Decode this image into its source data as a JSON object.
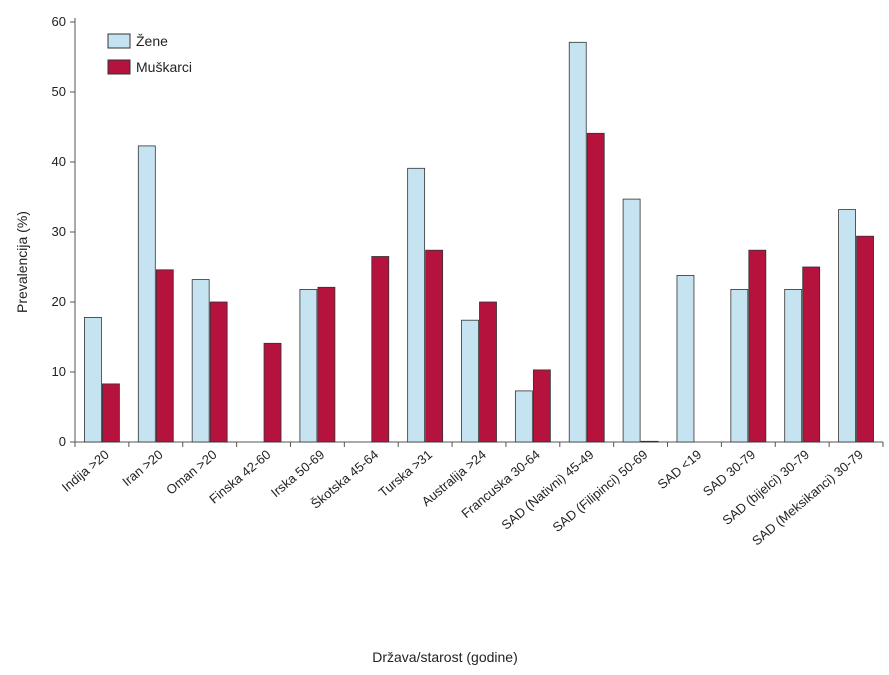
{
  "chart_data": {
    "type": "bar",
    "title": "",
    "xlabel": "Država/starost (godine)",
    "ylabel": "Prevalencija (%)",
    "ylim": [
      0,
      60
    ],
    "yticks": [
      0,
      10,
      20,
      30,
      40,
      50,
      60
    ],
    "grid": false,
    "legend_position": "top-left",
    "categories": [
      "Indija >20",
      "Iran >20",
      "Oman >20",
      "Finska 42-60",
      "Irska 50-69",
      "Škotska 45-64",
      "Turska >31",
      "Australija >24",
      "Francuska 30-64",
      "SAD (Nativni) 45-49",
      "SAD (Filipinci) 50-69",
      "SAD <19",
      "SAD 30-79",
      "SAD (bijelci) 30-79",
      "SAD (Meksikanci) 30-79"
    ],
    "series": [
      {
        "name": "Žene",
        "color": "#c5e3f0",
        "values": [
          17.8,
          42.3,
          23.2,
          null,
          21.8,
          null,
          39.1,
          17.4,
          7.3,
          57.1,
          34.7,
          23.8,
          21.8,
          21.8,
          33.2
        ]
      },
      {
        "name": "Muškarci",
        "color": "#b5123e",
        "values": [
          8.3,
          24.6,
          20.0,
          14.1,
          22.1,
          26.5,
          27.4,
          20.0,
          10.3,
          44.1,
          0.1,
          null,
          27.4,
          25.0,
          29.4
        ]
      }
    ]
  }
}
